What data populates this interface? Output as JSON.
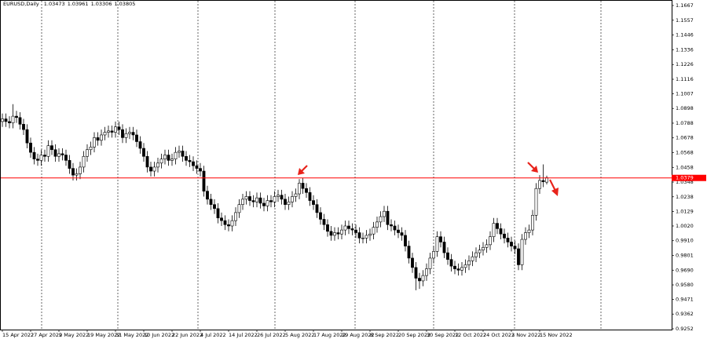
{
  "chart_data": {
    "type": "candlestick",
    "title": "EURUSD,Daily",
    "up_color": "#ffffff",
    "down_color": "#000000",
    "price_line_color": "#ff0000",
    "price_line": 1.0379,
    "ylim": [
      0.9252,
      1.1667
    ],
    "yticks": [
      1.1667,
      1.1557,
      1.1446,
      1.1336,
      1.1226,
      1.1116,
      1.1007,
      1.0898,
      1.0788,
      1.0678,
      1.0568,
      1.0458,
      1.0348,
      1.0238,
      1.0129,
      {
        "value": 1.002,
        "label": "1.0020"
      },
      {
        "value": 0.991,
        "label": "0.9910"
      },
      0.9801,
      {
        "value": 0.969,
        "label": "0.9690"
      },
      {
        "value": 0.958,
        "label": "0.9580"
      },
      0.9471,
      0.9362,
      0.9252
    ],
    "categories": [
      "15 Apr 2022",
      null,
      null,
      null,
      null,
      null,
      null,
      null,
      "27 Apr 2022",
      null,
      null,
      null,
      null,
      null,
      null,
      null,
      "9 May 2022",
      null,
      null,
      null,
      null,
      null,
      null,
      null,
      "19 May 2022",
      null,
      null,
      null,
      null,
      null,
      null,
      null,
      "31 May 2022",
      null,
      null,
      null,
      null,
      null,
      null,
      null,
      "10 Jun 2022",
      null,
      null,
      null,
      null,
      null,
      null,
      null,
      "22 Jun 2022",
      null,
      null,
      null,
      null,
      null,
      null,
      null,
      "4 Jul 2022",
      null,
      null,
      null,
      null,
      null,
      null,
      null,
      "14 Jul 2022",
      null,
      null,
      null,
      null,
      null,
      null,
      null,
      "26 Jul 2022",
      null,
      null,
      null,
      null,
      null,
      null,
      null,
      "5 Aug 2022",
      null,
      null,
      null,
      null,
      null,
      null,
      null,
      "17 Aug 2022",
      null,
      null,
      null,
      null,
      null,
      null,
      null,
      "29 Aug 2022",
      null,
      null,
      null,
      null,
      null,
      null,
      null,
      "8 Sep 2022",
      null,
      null,
      null,
      null,
      null,
      null,
      null,
      "20 Sep 2022",
      null,
      null,
      null,
      null,
      null,
      null,
      null,
      "30 Sep 2022",
      null,
      null,
      null,
      null,
      null,
      null,
      null,
      "12 Oct 2022",
      null,
      null,
      null,
      null,
      null,
      null,
      null,
      "24 Oct 2022",
      null,
      null,
      null,
      null,
      null,
      null,
      null,
      "3 Nov 2022",
      null,
      null,
      null,
      null,
      null,
      null,
      null,
      "15 Nov 2022",
      null,
      null
    ],
    "open": [
      1.08,
      1.082,
      1.08,
      1.079,
      1.084,
      1.083,
      1.078,
      1.074,
      1.064,
      1.057,
      1.052,
      1.051,
      1.055,
      1.054,
      1.062,
      1.059,
      1.054,
      1.056,
      1.055,
      1.051,
      1.045,
      1.04,
      1.041,
      1.046,
      1.054,
      1.059,
      1.061,
      1.068,
      1.066,
      1.07,
      1.072,
      1.073,
      1.072,
      1.076,
      1.074,
      1.068,
      1.071,
      1.072,
      1.07,
      1.065,
      1.06,
      1.054,
      1.046,
      1.043,
      1.046,
      1.049,
      1.052,
      1.055,
      1.051,
      1.052,
      1.057,
      1.058,
      1.054,
      1.051,
      1.05,
      1.047,
      1.045,
      1.043,
      1.028,
      1.022,
      1.018,
      1.015,
      1.008,
      1.006,
      1.003,
      1.002,
      1.006,
      1.012,
      1.018,
      1.022,
      1.024,
      1.021,
      1.02,
      1.023,
      1.019,
      1.017,
      1.021,
      1.02,
      1.024,
      1.025,
      1.022,
      1.018,
      1.02,
      1.024,
      1.026,
      1.034,
      1.03,
      1.027,
      1.021,
      1.018,
      1.012,
      1.007,
      1.003,
      0.998,
      0.995,
      0.997,
      0.996,
      0.999,
      1.002,
      1.0,
      0.999,
      0.997,
      0.993,
      0.993,
      0.995,
      0.996,
      1.001,
      1.005,
      1.009,
      1.013,
      1.003,
      1.002,
      0.999,
      0.997,
      0.995,
      0.987,
      0.978,
      0.971,
      0.963,
      0.961,
      0.965,
      0.97,
      0.978,
      0.983,
      0.994,
      0.99,
      0.982,
      0.977,
      0.972,
      0.97,
      0.969,
      0.971,
      0.973,
      0.976,
      0.979,
      0.982,
      0.984,
      0.986,
      0.988,
      0.994,
      1.004,
      1.0,
      0.996,
      0.993,
      0.99,
      0.987,
      0.985,
      0.973,
      0.992,
      0.997,
      0.999,
      1.01,
      1.03,
      1.036,
      1.03473
    ],
    "high": [
      1.086,
      1.086,
      1.084,
      1.093,
      1.088,
      1.087,
      1.082,
      1.078,
      1.068,
      1.061,
      1.056,
      1.059,
      1.059,
      1.066,
      1.066,
      1.063,
      1.06,
      1.06,
      1.059,
      1.055,
      1.049,
      1.045,
      1.05,
      1.058,
      1.063,
      1.065,
      1.072,
      1.072,
      1.074,
      1.076,
      1.077,
      1.077,
      1.08,
      1.08,
      1.078,
      1.075,
      1.076,
      1.076,
      1.074,
      1.069,
      1.064,
      1.058,
      1.05,
      1.05,
      1.053,
      1.056,
      1.059,
      1.059,
      1.056,
      1.061,
      1.062,
      1.062,
      1.058,
      1.055,
      1.054,
      1.051,
      1.049,
      1.047,
      1.032,
      1.026,
      1.022,
      1.019,
      1.012,
      1.01,
      1.007,
      1.01,
      1.016,
      1.022,
      1.026,
      1.028,
      1.028,
      1.025,
      1.027,
      1.027,
      1.023,
      1.025,
      1.025,
      1.028,
      1.029,
      1.029,
      1.026,
      1.024,
      1.028,
      1.03,
      1.037,
      1.038,
      1.034,
      1.031,
      1.025,
      1.022,
      1.016,
      1.011,
      1.007,
      1.002,
      1.001,
      1.001,
      1.003,
      1.006,
      1.006,
      1.004,
      1.003,
      1.001,
      0.997,
      0.999,
      1.0,
      1.005,
      1.009,
      1.013,
      1.017,
      1.017,
      1.007,
      1.006,
      1.003,
      1.001,
      0.999,
      0.991,
      0.982,
      0.975,
      0.967,
      0.969,
      0.974,
      0.982,
      0.987,
      0.998,
      0.998,
      0.994,
      0.986,
      0.981,
      0.976,
      0.974,
      0.975,
      0.977,
      0.98,
      0.983,
      0.986,
      0.988,
      0.99,
      0.992,
      0.998,
      1.008,
      1.008,
      1.004,
      1.0,
      0.997,
      0.994,
      0.991,
      0.989,
      0.996,
      1.001,
      1.003,
      1.014,
      1.034,
      1.04,
      1.048,
      1.03961
    ],
    "low": [
      1.076,
      1.076,
      1.075,
      1.075,
      1.079,
      1.074,
      1.07,
      1.06,
      1.053,
      1.048,
      1.047,
      1.047,
      1.05,
      1.05,
      1.055,
      1.05,
      1.05,
      1.051,
      1.047,
      1.041,
      1.036,
      1.036,
      1.037,
      1.042,
      1.05,
      1.055,
      1.057,
      1.062,
      1.062,
      1.066,
      1.068,
      1.068,
      1.068,
      1.07,
      1.064,
      1.064,
      1.067,
      1.066,
      1.061,
      1.056,
      1.05,
      1.042,
      1.039,
      1.039,
      1.042,
      1.045,
      1.048,
      1.047,
      1.047,
      1.048,
      1.053,
      1.05,
      1.047,
      1.046,
      1.043,
      1.041,
      1.039,
      1.024,
      1.018,
      1.014,
      1.011,
      1.004,
      1.002,
      0.999,
      0.998,
      0.998,
      1.002,
      1.008,
      1.014,
      1.018,
      1.017,
      1.016,
      1.016,
      1.015,
      1.013,
      1.013,
      1.016,
      1.016,
      1.02,
      1.018,
      1.014,
      1.014,
      1.016,
      1.02,
      1.022,
      1.026,
      1.023,
      1.017,
      1.014,
      1.008,
      1.003,
      0.999,
      0.994,
      0.991,
      0.991,
      0.992,
      0.992,
      0.995,
      0.996,
      0.995,
      0.993,
      0.989,
      0.989,
      0.989,
      0.991,
      0.992,
      0.997,
      1.001,
      1.005,
      0.999,
      0.998,
      0.995,
      0.993,
      0.991,
      0.983,
      0.974,
      0.967,
      0.954,
      0.955,
      0.957,
      0.961,
      0.966,
      0.974,
      0.979,
      0.986,
      0.978,
      0.973,
      0.968,
      0.966,
      0.965,
      0.965,
      0.967,
      0.969,
      0.972,
      0.975,
      0.978,
      0.98,
      0.982,
      0.984,
      0.99,
      0.996,
      0.992,
      0.989,
      0.986,
      0.983,
      0.981,
      0.969,
      0.969,
      0.988,
      0.993,
      0.995,
      1.006,
      1.026,
      1.031,
      1.03306
    ],
    "close": [
      1.082,
      1.08,
      1.079,
      1.084,
      1.083,
      1.078,
      1.074,
      1.064,
      1.057,
      1.052,
      1.051,
      1.055,
      1.054,
      1.062,
      1.059,
      1.054,
      1.056,
      1.055,
      1.051,
      1.045,
      1.04,
      1.041,
      1.046,
      1.054,
      1.059,
      1.061,
      1.068,
      1.066,
      1.07,
      1.072,
      1.073,
      1.072,
      1.076,
      1.074,
      1.068,
      1.071,
      1.072,
      1.07,
      1.065,
      1.06,
      1.054,
      1.046,
      1.043,
      1.046,
      1.049,
      1.052,
      1.055,
      1.051,
      1.052,
      1.057,
      1.058,
      1.054,
      1.051,
      1.05,
      1.047,
      1.045,
      1.043,
      1.028,
      1.022,
      1.018,
      1.015,
      1.008,
      1.006,
      1.003,
      1.002,
      1.006,
      1.012,
      1.018,
      1.022,
      1.024,
      1.021,
      1.02,
      1.023,
      1.019,
      1.017,
      1.021,
      1.02,
      1.024,
      1.025,
      1.022,
      1.018,
      1.02,
      1.024,
      1.026,
      1.034,
      1.03,
      1.027,
      1.021,
      1.018,
      1.012,
      1.007,
      1.003,
      0.998,
      0.995,
      0.997,
      0.996,
      0.999,
      1.002,
      1.0,
      0.999,
      0.997,
      0.993,
      0.993,
      0.995,
      0.996,
      1.001,
      1.005,
      1.009,
      1.013,
      1.003,
      1.002,
      0.999,
      0.997,
      0.995,
      0.987,
      0.978,
      0.971,
      0.963,
      0.961,
      0.965,
      0.97,
      0.978,
      0.983,
      0.994,
      0.99,
      0.982,
      0.977,
      0.972,
      0.97,
      0.969,
      0.971,
      0.973,
      0.976,
      0.979,
      0.982,
      0.984,
      0.986,
      0.988,
      0.994,
      1.004,
      1.0,
      0.996,
      0.993,
      0.99,
      0.987,
      0.985,
      0.973,
      0.992,
      0.997,
      0.999,
      1.01,
      1.03,
      1.036,
      1.035,
      1.03805
    ]
  }
}
